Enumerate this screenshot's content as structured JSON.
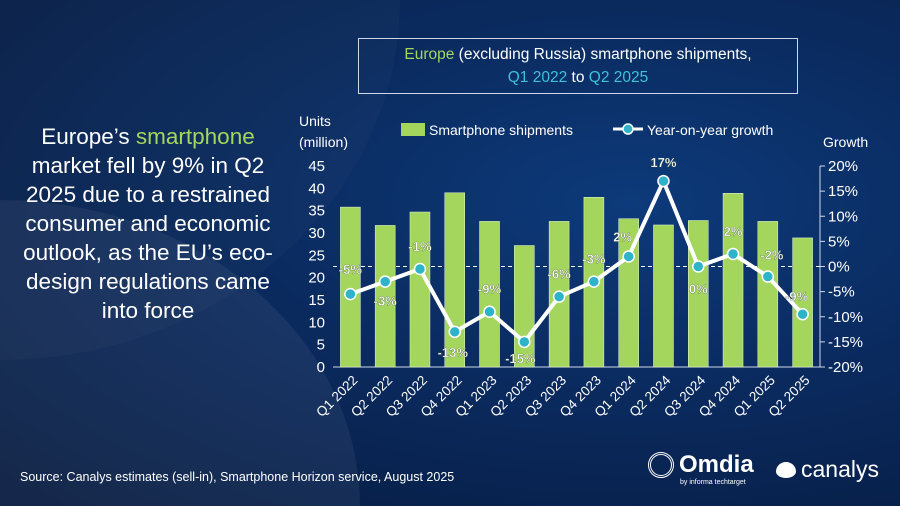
{
  "headline": {
    "pre": "Europe’s ",
    "highlight": "smartphone",
    "post": " market fell by 9% in Q2 2025 due to a restrained consumer and economic outlook, as the EU’s eco-design regulations came into force"
  },
  "source": "Source: Canalys estimates (sell-in), Smartphone Horizon service, August 2025",
  "logos": {
    "omdia": "Omdia",
    "omdia_sub": "by informa techtarget",
    "canalys": "canalys"
  },
  "colors": {
    "bar": "#a4d65e",
    "line": "#ffffff",
    "marker": "#2fb3c9",
    "background": "#0a2a5e"
  },
  "chart_data": {
    "type": "bar+line",
    "title": {
      "part1": "Europe",
      "part2": " (excluding Russia) smartphone shipments,",
      "part3": "Q1 2022",
      "part4": " to ",
      "part5": "Q2 2025"
    },
    "ylabel_left": "Units (million)",
    "ylabel_right": "Growth",
    "ylim_left": [
      0,
      45
    ],
    "yticks_left": [
      "0",
      "5",
      "10",
      "15",
      "20",
      "25",
      "30",
      "35",
      "40",
      "45"
    ],
    "ylim_right": [
      -20,
      20
    ],
    "yticks_right": [
      "-20%",
      "-15%",
      "-10%",
      "-5%",
      "0%",
      "5%",
      "10%",
      "15%",
      "20%"
    ],
    "legend_position": "top",
    "categories": [
      "Q1 2022",
      "Q2 2022",
      "Q3 2022",
      "Q4 2022",
      "Q1 2023",
      "Q2 2023",
      "Q3 2023",
      "Q4 2023",
      "Q1 2024",
      "Q2 2024",
      "Q3 2024",
      "Q4 2024",
      "Q1 2025",
      "Q2 2025"
    ],
    "series": [
      {
        "name": "Smartphone shipments",
        "type": "bar",
        "axis": "left",
        "values": [
          35.8,
          31.7,
          34.7,
          39.0,
          32.6,
          27.2,
          32.6,
          38.0,
          33.2,
          31.8,
          32.8,
          38.9,
          32.6,
          28.9
        ]
      },
      {
        "name": "Year-on-year growth",
        "type": "line",
        "axis": "right",
        "values": [
          -5.5,
          -3,
          -0.5,
          -13,
          -9,
          -15,
          -6,
          -3,
          2,
          17,
          0,
          2.5,
          -2,
          -9.5
        ],
        "labels": [
          "-5%",
          "-3%",
          "-1%",
          "-13%",
          "-9%",
          "-15%",
          "-6%",
          "-3%",
          "2%",
          "17%",
          "0%",
          "2%",
          "-2%",
          "-9%"
        ]
      }
    ]
  }
}
